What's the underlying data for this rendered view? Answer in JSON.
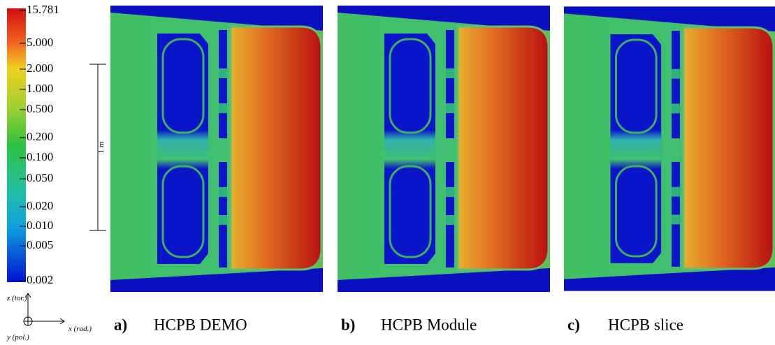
{
  "colorbar": {
    "ticks": [
      "15.781",
      "5.000",
      "2.000",
      "1.000",
      "0.500",
      "0.200",
      "0.100",
      "0.050",
      "0.020",
      "0.010",
      "0.005",
      "0.002"
    ]
  },
  "scale_bar": "1 m",
  "axes": {
    "z": "z (tor.)",
    "y": "y (pol.)",
    "x": "x (rad.)"
  },
  "panels": [
    {
      "letter": "a)",
      "label": "HCPB DEMO"
    },
    {
      "letter": "b)",
      "label": "HCPB Module"
    },
    {
      "letter": "c)",
      "label": "HCPB slice"
    }
  ]
}
